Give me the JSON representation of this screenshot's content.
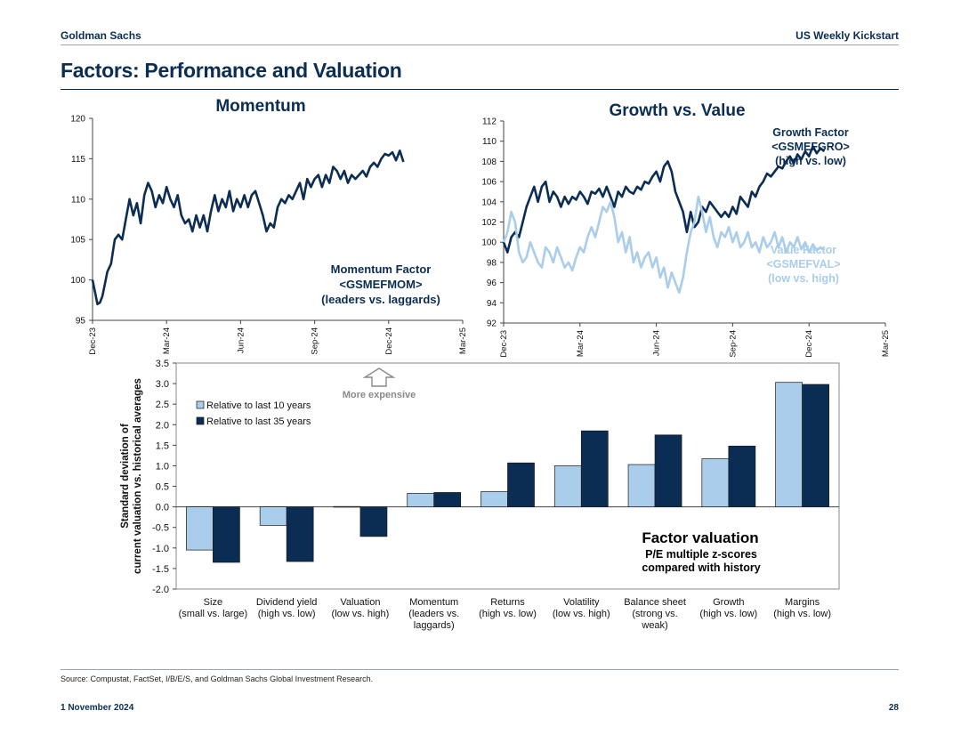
{
  "header": {
    "brand": "Goldman Sachs",
    "report": "US Weekly Kickstart"
  },
  "page_title": "Factors: Performance and Valuation",
  "footer": {
    "source": "Source: Compustat, FactSet, I/B/E/S, and Goldman Sachs Global Investment Research.",
    "date": "1 November 2024",
    "page": "28"
  },
  "colors": {
    "navy": "#0b2d53",
    "light_blue": "#a9cdeb",
    "grid": "#bfbfbf"
  },
  "chart_data": [
    {
      "type": "line",
      "title": "Momentum",
      "x_ticks": [
        "Dec-23",
        "Mar-24",
        "Jun-24",
        "Sep-24",
        "Dec-24",
        "Mar-25"
      ],
      "xlim": [
        0,
        15
      ],
      "ylim": [
        95,
        120
      ],
      "y_ticks": [
        95,
        100,
        105,
        110,
        115,
        120
      ],
      "annotation": [
        "Momentum Factor",
        "<GSMEFMOM>",
        "(leaders vs. laggards)"
      ],
      "series": [
        {
          "name": "Momentum Factor <GSMEFMOM>",
          "color": "#0b2d53",
          "x": [
            0,
            0.1,
            0.2,
            0.3,
            0.4,
            0.5,
            0.6,
            0.75,
            0.9,
            1.05,
            1.2,
            1.35,
            1.5,
            1.65,
            1.8,
            1.95,
            2.1,
            2.25,
            2.4,
            2.55,
            2.7,
            2.85,
            3.0,
            3.15,
            3.3,
            3.45,
            3.6,
            3.75,
            3.9,
            4.05,
            4.2,
            4.35,
            4.5,
            4.65,
            4.8,
            4.95,
            5.1,
            5.25,
            5.4,
            5.55,
            5.7,
            5.85,
            6.0,
            6.15,
            6.3,
            6.45,
            6.6,
            6.75,
            6.9,
            7.05,
            7.2,
            7.35,
            7.5,
            7.65,
            7.8,
            7.95,
            8.1,
            8.25,
            8.4,
            8.55,
            8.7,
            8.85,
            9.0,
            9.15,
            9.3,
            9.45,
            9.6,
            9.75,
            9.9,
            10.05,
            10.2,
            10.35,
            10.5,
            10.65,
            10.8,
            10.95,
            11.1,
            11.25,
            11.4,
            11.55,
            11.7,
            11.85,
            12.0,
            12.15,
            12.3,
            12.45,
            12.6
          ],
          "values": [
            100,
            98.5,
            97,
            97.2,
            98,
            99.5,
            101,
            102,
            105,
            105.6,
            105,
            107.5,
            110,
            108,
            109.5,
            107,
            110.5,
            112,
            111,
            109,
            110.5,
            109.5,
            111.5,
            110,
            109,
            110.5,
            108,
            107,
            107.5,
            106,
            108,
            106.5,
            108,
            106,
            108.5,
            110.5,
            108.5,
            110,
            109,
            111,
            108.5,
            110,
            109,
            110.5,
            109,
            110.5,
            111,
            109.5,
            108,
            106,
            107,
            106.5,
            109,
            110,
            109.5,
            110.5,
            110,
            111,
            112,
            110,
            112.5,
            111.5,
            112.5,
            113,
            111.5,
            113,
            112,
            114,
            113.5,
            112.5,
            113.5,
            112,
            113,
            112.5,
            113,
            113.5,
            112.8,
            114,
            114.5,
            114,
            115,
            115.6,
            115.4,
            115.8,
            114.8,
            116,
            114.6
          ]
        }
      ]
    },
    {
      "type": "line",
      "title": "Growth vs. Value",
      "x_ticks": [
        "Dec-23",
        "Mar-24",
        "Jun-24",
        "Sep-24",
        "Dec-24",
        "Mar-25"
      ],
      "xlim": [
        0,
        15
      ],
      "ylim": [
        92,
        112
      ],
      "y_ticks": [
        92,
        94,
        96,
        98,
        100,
        102,
        104,
        106,
        108,
        110,
        112
      ],
      "annotations": [
        {
          "lines": [
            "Growth Factor",
            "<GSMEFGRO>",
            "(high vs. low)"
          ],
          "color": "#0b2d53"
        },
        {
          "lines": [
            "Value Factor",
            "<GSMEFVAL>",
            "(low vs. high)"
          ],
          "color": "#a9cdeb"
        }
      ],
      "series": [
        {
          "name": "Growth Factor <GSMEFGRO>",
          "color": "#0b2d53",
          "x": [
            0,
            0.15,
            0.3,
            0.45,
            0.6,
            0.75,
            0.9,
            1.05,
            1.2,
            1.35,
            1.5,
            1.65,
            1.8,
            1.95,
            2.1,
            2.25,
            2.4,
            2.55,
            2.7,
            2.85,
            3.0,
            3.15,
            3.3,
            3.45,
            3.6,
            3.75,
            3.9,
            4.05,
            4.2,
            4.35,
            4.5,
            4.65,
            4.8,
            4.95,
            5.1,
            5.25,
            5.4,
            5.55,
            5.7,
            5.85,
            6.0,
            6.15,
            6.3,
            6.45,
            6.6,
            6.75,
            6.9,
            7.05,
            7.2,
            7.35,
            7.5,
            7.65,
            7.8,
            7.95,
            8.1,
            8.25,
            8.4,
            8.55,
            8.7,
            8.85,
            9.0,
            9.15,
            9.3,
            9.45,
            9.6,
            9.75,
            9.9,
            10.05,
            10.2,
            10.35,
            10.5,
            10.65,
            10.8,
            10.95,
            11.1,
            11.25,
            11.4,
            11.55,
            11.7,
            11.85,
            12.0,
            12.15,
            12.3,
            12.45,
            12.6
          ],
          "values": [
            100,
            99,
            100.5,
            101,
            100.5,
            102,
            103.5,
            104.5,
            105.5,
            104,
            105.5,
            106,
            104,
            105,
            104.5,
            103.5,
            104.5,
            103.8,
            104.5,
            104.2,
            105,
            104.5,
            103.8,
            105,
            104.8,
            105.3,
            104.5,
            105.5,
            104.5,
            103.5,
            105,
            104.5,
            105.5,
            105,
            104.8,
            105.5,
            105.2,
            106,
            105.8,
            106.5,
            107,
            106,
            107.5,
            108,
            107,
            105,
            104,
            103,
            101,
            103,
            101.5,
            102,
            103.5,
            103,
            104,
            103.5,
            103,
            102.5,
            103,
            102.5,
            103.5,
            102.8,
            104.5,
            104,
            103.5,
            105,
            104.5,
            105.5,
            106,
            106.8,
            106.5,
            107,
            107.5,
            107.3,
            108,
            108.5,
            107.8,
            108.7,
            108.2,
            109,
            108.5,
            109.5,
            108.8,
            109.3,
            109
          ]
        },
        {
          "name": "Value Factor <GSMEFVAL>",
          "color": "#a9cdeb",
          "x": [
            0,
            0.15,
            0.3,
            0.45,
            0.6,
            0.75,
            0.9,
            1.05,
            1.2,
            1.35,
            1.5,
            1.65,
            1.8,
            1.95,
            2.1,
            2.25,
            2.4,
            2.55,
            2.7,
            2.85,
            3.0,
            3.15,
            3.3,
            3.45,
            3.6,
            3.75,
            3.9,
            4.05,
            4.2,
            4.35,
            4.5,
            4.65,
            4.8,
            4.95,
            5.1,
            5.25,
            5.4,
            5.55,
            5.7,
            5.85,
            6.0,
            6.15,
            6.3,
            6.45,
            6.6,
            6.75,
            6.9,
            7.05,
            7.2,
            7.35,
            7.5,
            7.65,
            7.8,
            7.95,
            8.1,
            8.25,
            8.4,
            8.55,
            8.7,
            8.85,
            9.0,
            9.15,
            9.3,
            9.45,
            9.6,
            9.75,
            9.9,
            10.05,
            10.2,
            10.35,
            10.5,
            10.65,
            10.8,
            10.95,
            11.1,
            11.25,
            11.4,
            11.55,
            11.7,
            11.85,
            12.0,
            12.15,
            12.3,
            12.45,
            12.6
          ],
          "values": [
            100,
            101,
            103,
            102,
            99,
            98,
            98.5,
            100,
            99,
            98,
            97.5,
            99.5,
            99,
            98,
            99.5,
            98.5,
            97.5,
            98,
            97.2,
            98.5,
            99.5,
            99,
            100.5,
            101.5,
            100.5,
            102,
            103.5,
            103,
            104,
            102.5,
            100,
            101,
            99,
            100.5,
            98,
            99,
            97.5,
            98.5,
            99,
            97.5,
            98.5,
            96.5,
            97.5,
            95.5,
            97,
            96,
            95,
            96.5,
            99,
            101,
            102,
            104.5,
            103,
            101,
            102.5,
            100.5,
            99.5,
            101,
            100.5,
            101.5,
            100,
            101,
            99.5,
            100,
            101,
            99.5,
            100,
            99,
            100.5,
            99.5,
            100,
            101,
            99.5,
            100.5,
            99,
            100,
            99.5,
            100.5,
            99.3,
            100,
            99,
            99.8,
            99.2,
            99.5,
            99.2
          ]
        }
      ]
    },
    {
      "type": "bar",
      "title": "Factor valuation",
      "subtitle": [
        "P/E multiple z-scores",
        "compared with history"
      ],
      "ylabel": [
        "Standard deviation of",
        "current valuation vs.  historical averages"
      ],
      "ylim": [
        -2.0,
        3.5
      ],
      "y_ticks": [
        "-2.0",
        "-1.5",
        "-1.0",
        "-0.5",
        "0.0",
        "0.5",
        "1.0",
        "1.5",
        "2.0",
        "2.5",
        "3.0",
        "3.5"
      ],
      "annotation": "More expensive",
      "categories": [
        [
          "Size",
          "(small vs. large)"
        ],
        [
          "Dividend yield",
          "(high vs. low)"
        ],
        [
          "Valuation",
          "(low vs. high)"
        ],
        [
          "Momentum",
          "(leaders vs.",
          "laggards)"
        ],
        [
          "Returns",
          "(high vs. low)"
        ],
        [
          "Volatility",
          "(low vs. high)"
        ],
        [
          "Balance sheet",
          "(strong vs.",
          "weak)"
        ],
        [
          "Growth",
          "(high vs. low)"
        ],
        [
          "Margins",
          "(high vs. low)"
        ]
      ],
      "series": [
        {
          "name": "Relative to last 10 years",
          "color": "#a9cdeb",
          "values": [
            -1.05,
            -0.45,
            0.01,
            0.33,
            0.37,
            1.0,
            1.03,
            1.17,
            3.03
          ]
        },
        {
          "name": "Relative to last 35 years",
          "color": "#0b2d53",
          "values": [
            -1.35,
            -1.33,
            -0.72,
            0.35,
            1.07,
            1.85,
            1.75,
            1.48,
            2.98
          ]
        }
      ]
    }
  ]
}
